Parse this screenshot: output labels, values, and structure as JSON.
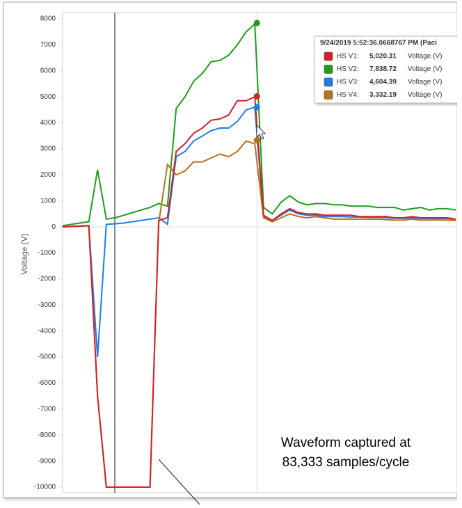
{
  "chart_data": {
    "type": "line",
    "y_label": "Voltage (V)",
    "ylim": [
      -10000,
      8000
    ],
    "yticks": [
      8000,
      7000,
      6000,
      5000,
      4000,
      3000,
      2000,
      1000,
      0,
      -1000,
      -2000,
      -3000,
      -4000,
      -5000,
      -6000,
      -7000,
      -8000,
      -9000,
      -10000
    ],
    "grid": false,
    "series": [
      {
        "name": "HS V1:",
        "color": "#d42027",
        "values": [
          0,
          20,
          30,
          50,
          -6500,
          -10000,
          -10000,
          -10000,
          -10000,
          -10000,
          -10000,
          250,
          350,
          2900,
          3200,
          3600,
          3800,
          4100,
          4150,
          4300,
          4850,
          4850,
          5000,
          450,
          250,
          500,
          700,
          550,
          500,
          500,
          450,
          450,
          450,
          450,
          400,
          400,
          400,
          400,
          350,
          350,
          400,
          350,
          350,
          350,
          350,
          300
        ],
        "highlight": {
          "value": 5020.31,
          "label": "5,020.31"
        }
      },
      {
        "name": "HS V2:",
        "color": "#1f9b1f",
        "values": [
          50,
          100,
          150,
          200,
          2200,
          300,
          350,
          450,
          550,
          650,
          750,
          900,
          800,
          4550,
          5000,
          5600,
          5900,
          6350,
          6400,
          6600,
          7000,
          7500,
          7800,
          750,
          500,
          950,
          1200,
          950,
          850,
          900,
          900,
          850,
          850,
          800,
          800,
          800,
          750,
          750,
          750,
          650,
          700,
          750,
          650,
          700,
          700,
          650
        ],
        "highlight": {
          "value": 7838.72,
          "label": "7,838.72"
        }
      },
      {
        "name": "HS V3:",
        "color": "#1e7fe0",
        "values": [
          0,
          20,
          30,
          50,
          -5000,
          100,
          120,
          150,
          200,
          250,
          300,
          350,
          100,
          2700,
          2900,
          3300,
          3500,
          3700,
          3800,
          3800,
          4050,
          4500,
          4600,
          400,
          250,
          450,
          650,
          500,
          450,
          450,
          400,
          400,
          400,
          380,
          380,
          370,
          370,
          360,
          330,
          330,
          350,
          320,
          320,
          330,
          320,
          300
        ],
        "highlight": {
          "value": 4604.39,
          "label": "4,604.39"
        }
      },
      {
        "name": "HS V4:",
        "color": "#b8711a",
        "values": [
          0,
          20,
          30,
          50,
          -6500,
          -10000,
          -10000,
          -10000,
          -10000,
          -10000,
          -10000,
          150,
          2400,
          2000,
          2150,
          2500,
          2500,
          2650,
          2800,
          2700,
          2900,
          3300,
          3200,
          350,
          200,
          350,
          500,
          400,
          350,
          400,
          350,
          300,
          300,
          300,
          300,
          300,
          300,
          280,
          260,
          260,
          300,
          260,
          260,
          270,
          260,
          250
        ],
        "highlight": {
          "value": 3332.19,
          "label": "3,332.19"
        }
      }
    ],
    "tooltip_title": "9/24/2019 5:52:36.0668767 PM (Paci",
    "unit": "Voltage (V)",
    "annotation": [
      "Waveform captured at",
      "83,333 samples/cycle"
    ]
  }
}
